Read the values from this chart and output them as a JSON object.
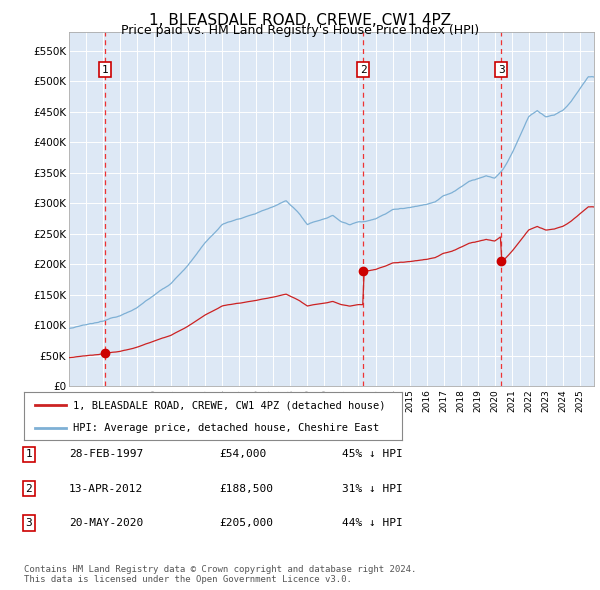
{
  "title": "1, BLEASDALE ROAD, CREWE, CW1 4PZ",
  "subtitle": "Price paid vs. HM Land Registry's House Price Index (HPI)",
  "title_fontsize": 11,
  "subtitle_fontsize": 9,
  "background_color": "#ffffff",
  "plot_bg_color": "#dde8f5",
  "hpi_color": "#7eb0d5",
  "price_color": "#cc2222",
  "sale_marker_color": "#cc0000",
  "vline_color": "#ee3333",
  "ylim": [
    0,
    580000
  ],
  "yticks": [
    0,
    50000,
    100000,
    150000,
    200000,
    250000,
    300000,
    350000,
    400000,
    450000,
    500000,
    550000
  ],
  "ytick_labels": [
    "£0",
    "£50K",
    "£100K",
    "£150K",
    "£200K",
    "£250K",
    "£300K",
    "£350K",
    "£400K",
    "£450K",
    "£500K",
    "£550K"
  ],
  "xstart": 1995.0,
  "xend": 2025.83,
  "sales": [
    {
      "date_num": 1997.12,
      "price": 54000,
      "label": "1"
    },
    {
      "date_num": 2012.28,
      "price": 188500,
      "label": "2"
    },
    {
      "date_num": 2020.38,
      "price": 205000,
      "label": "3"
    }
  ],
  "legend_entries": [
    "1, BLEASDALE ROAD, CREWE, CW1 4PZ (detached house)",
    "HPI: Average price, detached house, Cheshire East"
  ],
  "table_rows": [
    {
      "num": "1",
      "date": "28-FEB-1997",
      "price": "£54,000",
      "pct": "45% ↓ HPI"
    },
    {
      "num": "2",
      "date": "13-APR-2012",
      "price": "£188,500",
      "pct": "31% ↓ HPI"
    },
    {
      "num": "3",
      "date": "20-MAY-2020",
      "price": "£205,000",
      "pct": "44% ↓ HPI"
    }
  ],
  "footer": "Contains HM Land Registry data © Crown copyright and database right 2024.\nThis data is licensed under the Open Government Licence v3.0."
}
